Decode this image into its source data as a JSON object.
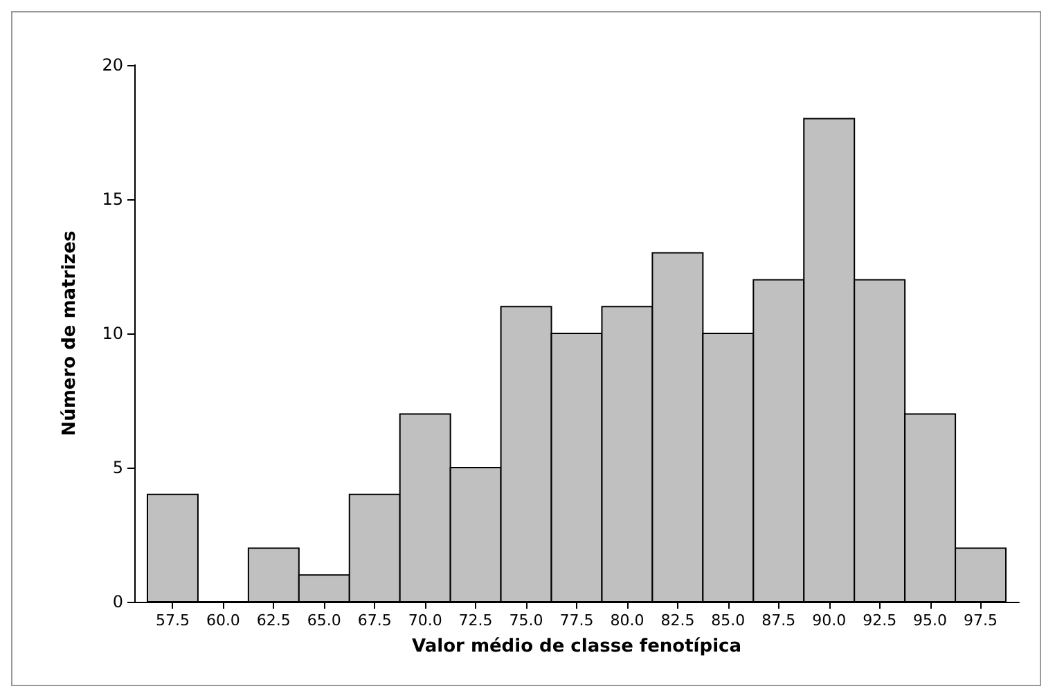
{
  "chart_data": {
    "type": "histogram",
    "xlabel": "Valor médio de classe fenotípica",
    "ylabel": "Número de matrizes",
    "bins": [
      56.25,
      58.75,
      61.25,
      63.75,
      66.25,
      68.75,
      71.25,
      73.75,
      76.25,
      78.75,
      81.25,
      83.75,
      86.25,
      88.75,
      91.25,
      93.75,
      96.25,
      98.75
    ],
    "values": [
      4,
      0,
      2,
      1,
      4,
      7,
      5,
      11,
      10,
      11,
      13,
      10,
      12,
      18,
      12,
      7,
      2
    ],
    "color": "#c0c0c0",
    "xlim": [
      55.6,
      99.4
    ],
    "ylim": [
      0,
      20
    ],
    "xticks": [
      57.5,
      {
        "value": 60,
        "label": "60.0"
      },
      62.5,
      {
        "value": 65,
        "label": "65.0"
      },
      67.5,
      {
        "value": 70,
        "label": "70.0"
      },
      72.5,
      {
        "value": 75,
        "label": "75.0"
      },
      77.5,
      {
        "value": 80,
        "label": "80.0"
      },
      82.5,
      {
        "value": 85,
        "label": "85.0"
      },
      87.5,
      {
        "value": 90,
        "label": "90.0"
      },
      92.5,
      {
        "value": 95,
        "label": "95.0"
      },
      97.5
    ],
    "yticks": [
      0,
      5,
      10,
      15,
      20
    ],
    "grid": false
  }
}
